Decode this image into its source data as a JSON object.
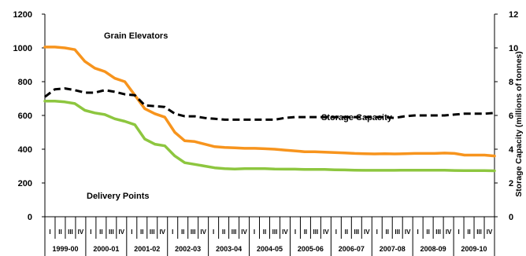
{
  "chart_data": {
    "type": "line",
    "title": "",
    "xlabel": "",
    "ylabel": "",
    "y2label": "Storage Capacity  (millions of tonnes)",
    "ylim": [
      0,
      1200
    ],
    "y2lim": [
      0,
      12
    ],
    "yticks": [
      "0",
      "200",
      "400",
      "600",
      "800",
      "1000",
      "1200"
    ],
    "y2ticks": [
      "0",
      "2",
      "4",
      "6",
      "8",
      "10",
      "12"
    ],
    "quarter_labels": [
      "I",
      "II",
      "III",
      "IV"
    ],
    "years": [
      "1999-00",
      "2000-01",
      "2001-02",
      "2002-03",
      "2003-04",
      "2004-05",
      "2005-06",
      "2006-07",
      "2007-08",
      "2008-09",
      "2009-10"
    ],
    "grid": false,
    "series": [
      {
        "name": "Grain Elevators",
        "axis": "left",
        "color": "#f7941d",
        "dash": "solid",
        "values": [
          1005,
          1005,
          1000,
          990,
          920,
          880,
          860,
          820,
          800,
          720,
          640,
          610,
          590,
          500,
          450,
          445,
          430,
          415,
          410,
          408,
          405,
          405,
          403,
          400,
          395,
          390,
          385,
          385,
          383,
          380,
          378,
          375,
          373,
          372,
          373,
          372,
          373,
          375,
          375,
          375,
          377,
          375,
          365,
          365,
          365,
          360
        ]
      },
      {
        "name": "Delivery Points",
        "axis": "left",
        "color": "#8dc63f",
        "dash": "solid",
        "values": [
          685,
          685,
          680,
          670,
          630,
          615,
          605,
          580,
          565,
          545,
          460,
          430,
          420,
          360,
          320,
          310,
          300,
          290,
          285,
          283,
          285,
          285,
          285,
          283,
          282,
          282,
          280,
          280,
          280,
          278,
          277,
          276,
          275,
          275,
          275,
          275,
          276,
          276,
          276,
          276,
          276,
          274,
          273,
          273,
          273,
          272
        ]
      },
      {
        "name": "Storage Capacity",
        "axis": "right",
        "color": "#000000",
        "dash": "dashed",
        "values": [
          7.1,
          7.55,
          7.6,
          7.5,
          7.35,
          7.35,
          7.5,
          7.4,
          7.25,
          7.2,
          6.6,
          6.55,
          6.5,
          6.1,
          5.95,
          5.95,
          5.85,
          5.8,
          5.75,
          5.75,
          5.75,
          5.75,
          5.75,
          5.75,
          5.85,
          5.9,
          5.9,
          5.9,
          5.9,
          5.9,
          5.9,
          5.9,
          5.9,
          5.9,
          5.9,
          5.85,
          5.95,
          6.0,
          6.0,
          6.0,
          6.0,
          6.05,
          6.1,
          6.1,
          6.1,
          6.15
        ]
      }
    ]
  }
}
